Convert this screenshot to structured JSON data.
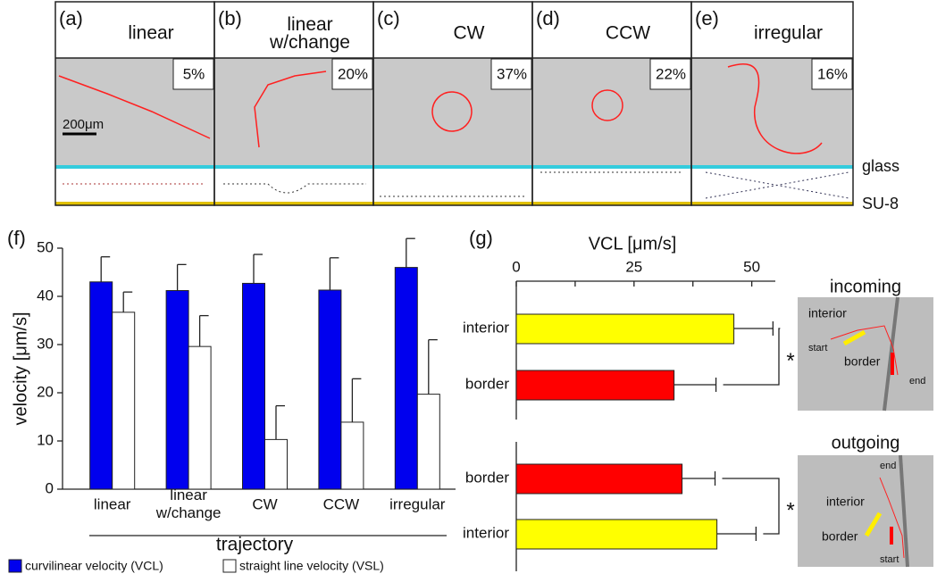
{
  "panels": [
    {
      "label": "(a)",
      "title": "linear",
      "percent": "5%"
    },
    {
      "label": "(b)",
      "title": "linear\nw/change",
      "percent": "20%"
    },
    {
      "label": "(c)",
      "title": "CW",
      "percent": "37%"
    },
    {
      "label": "(d)",
      "title": "CCW",
      "percent": "22%"
    },
    {
      "label": "(e)",
      "title": "irregular",
      "percent": "16%"
    }
  ],
  "scale_bar": "200μm",
  "layers": [
    "glass",
    "SU-8"
  ],
  "chart_data": [
    {
      "type": "bar",
      "panel_label": "(f)",
      "ylabel": "velocity [μm/s]",
      "xlabel": "trajectory",
      "categories": [
        "linear",
        "linear\nw/change",
        "CW",
        "CCW",
        "irregular"
      ],
      "series": [
        {
          "name": "curvilinear velocity (VCL)",
          "color": "#0000ee",
          "values": [
            43,
            41.2,
            42.7,
            41.3,
            46
          ],
          "errors": [
            5.2,
            5.4,
            6,
            6.7,
            6
          ]
        },
        {
          "name": "straight line velocity (VSL)",
          "color": "#ffffff",
          "values": [
            36.7,
            29.6,
            10.3,
            13.9,
            19.7
          ],
          "errors": [
            4.2,
            6.4,
            7,
            9,
            11.3
          ]
        }
      ],
      "ylim": [
        0,
        50
      ],
      "yticks": [
        0,
        10,
        20,
        30,
        40,
        50
      ]
    },
    {
      "type": "hbar",
      "panel_label": "(g)",
      "xlabel": "VCL [μm/s]",
      "xlim": [
        0,
        55
      ],
      "xticks": [
        0,
        25,
        50
      ],
      "xminorticks": [
        12.5,
        37.5
      ],
      "groups": [
        {
          "name": "incoming",
          "categories": [
            "interior",
            "border"
          ],
          "colors": [
            "#ffff00",
            "#ff0000"
          ],
          "values": [
            46.2,
            33.5
          ],
          "errors": [
            8.3,
            8.9
          ],
          "significance": "*"
        },
        {
          "name": "outgoing",
          "categories": [
            "border",
            "interior"
          ],
          "colors": [
            "#ff0000",
            "#ffff00"
          ],
          "values": [
            35.2,
            42.6
          ],
          "errors": [
            7,
            8.3
          ],
          "significance": "*"
        }
      ]
    }
  ],
  "insets": [
    {
      "labels": [
        "interior",
        "start",
        "border",
        "end"
      ]
    },
    {
      "labels": [
        "end",
        "interior",
        "border",
        "start"
      ]
    }
  ]
}
